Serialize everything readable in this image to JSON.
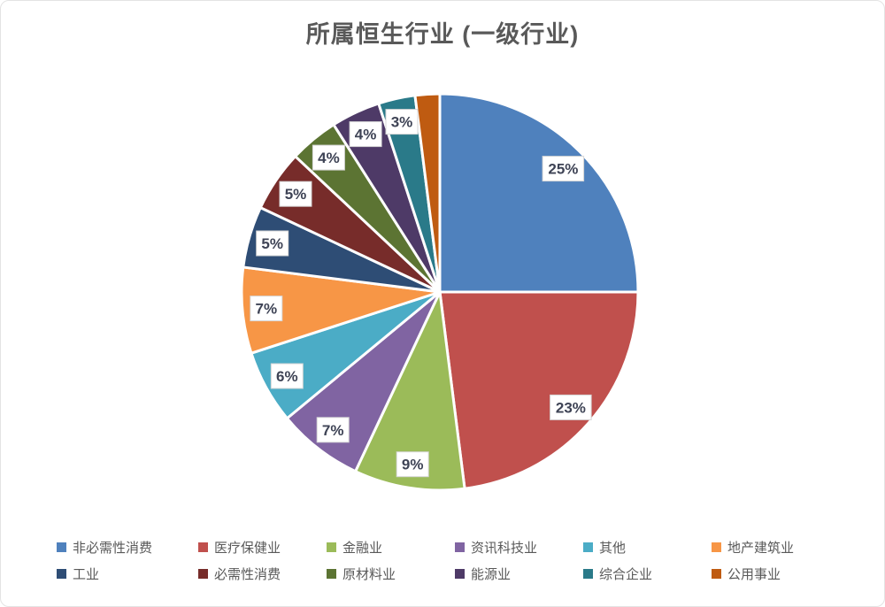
{
  "title": "所属恒生行业 (一级行业)",
  "chart_data": {
    "type": "pie",
    "title": "所属恒生行业 (一级行业)",
    "start_angle_deg": 0,
    "direction": "clockwise",
    "legend_position": "bottom",
    "legend_rows": 2,
    "slices": [
      {
        "label": "非必需性消费",
        "value": 25,
        "display": "25%",
        "color": "#4F81BD"
      },
      {
        "label": "医疗保健业",
        "value": 23,
        "display": "23%",
        "color": "#C0504D"
      },
      {
        "label": "金融业",
        "value": 9,
        "display": "9%",
        "color": "#9BBB59"
      },
      {
        "label": "资讯科技业",
        "value": 7,
        "display": "7%",
        "color": "#8064A2"
      },
      {
        "label": "其他",
        "value": 6,
        "display": "6%",
        "color": "#4BACC6"
      },
      {
        "label": "地产建筑业",
        "value": 7,
        "display": "7%",
        "color": "#F79646"
      },
      {
        "label": "工业",
        "value": 5,
        "display": "5%",
        "color": "#2E4D75"
      },
      {
        "label": "必需性消费",
        "value": 5,
        "display": "5%",
        "color": "#772C2A"
      },
      {
        "label": "原材料业",
        "value": 4,
        "display": "4%",
        "color": "#5C7433"
      },
      {
        "label": "能源业",
        "value": 4,
        "display": "4%",
        "color": "#4E3A67"
      },
      {
        "label": "综合企业",
        "value": 3,
        "display": "3%",
        "color": "#2A7A89"
      },
      {
        "label": "公用事业",
        "value": 2,
        "display": "",
        "color": "#BF5B11"
      }
    ]
  },
  "styles": {
    "title_color": "#595959",
    "legend_text_color": "#595959",
    "label_text_color": "#3E4355",
    "label_box_fill": "#FFFFFF",
    "label_box_border": "#D6D6D6",
    "slice_separator": "#FFFFFF"
  }
}
